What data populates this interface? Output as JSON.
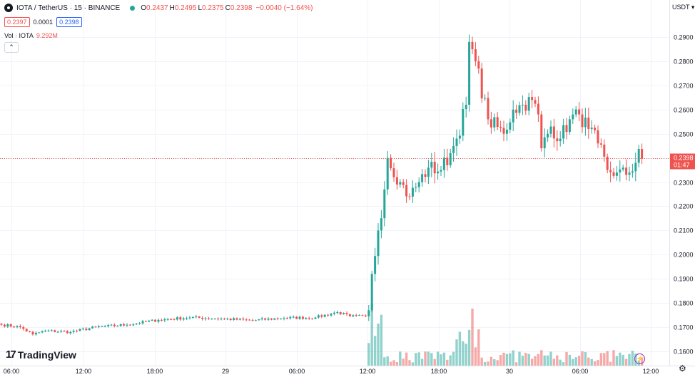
{
  "header": {
    "symbol": "IOTA / TetherUS · 15 · BINANCE",
    "o_label": "O",
    "o_value": "0.2437",
    "h_label": "H",
    "h_value": "0.2495",
    "l_label": "L",
    "l_value": "0.2375",
    "c_label": "C",
    "c_value": "0.2398",
    "change": "−0.0040 (−1.64%)"
  },
  "trade": {
    "sell": "0.2397",
    "spread": "0.0001",
    "buy": "0.2398"
  },
  "volume": {
    "label": "Vol · IOTA",
    "value": "9.292M"
  },
  "collapse_icon": "chevron-up-icon",
  "currency": "USDT",
  "watermark": "TradingView",
  "colors": {
    "up": "#26a69a",
    "down": "#ef5350",
    "grid": "#f0f3fa",
    "text": "#131722",
    "price_line": "#ef5350"
  },
  "chart_data": {
    "type": "candlestick",
    "symbol": "IOTA/USDT",
    "interval": "15",
    "ylim": [
      0.155,
      0.3
    ],
    "y_ticks": [
      0.16,
      0.17,
      0.18,
      0.19,
      0.2,
      0.21,
      0.22,
      0.23,
      0.24,
      0.25,
      0.26,
      0.27,
      0.28,
      0.29
    ],
    "y_tick_labels": [
      "0.1600",
      "0.1700",
      "0.1800",
      "0.1900",
      "0.2000",
      "0.2100",
      "0.2200",
      "0.2300",
      "0.2400",
      "0.2500",
      "0.2600",
      "0.2700",
      "0.2800",
      "0.2900"
    ],
    "x_tick_labels": [
      "06:00",
      "12:00",
      "18:00",
      "29",
      "06:00",
      "12:00",
      "18:00",
      "30",
      "06:00",
      "12:00"
    ],
    "last_price": 0.2398,
    "last_price_label": "0.2398",
    "countdown": "01:47",
    "series": [
      {
        "name": "Price",
        "key_points": [
          {
            "i": 0,
            "p": 0.171
          },
          {
            "i": 6,
            "p": 0.17
          },
          {
            "i": 10,
            "p": 0.167
          },
          {
            "i": 14,
            "p": 0.1685
          },
          {
            "i": 22,
            "p": 0.168
          },
          {
            "i": 30,
            "p": 0.17
          },
          {
            "i": 40,
            "p": 0.171
          },
          {
            "i": 50,
            "p": 0.173
          },
          {
            "i": 60,
            "p": 0.174
          },
          {
            "i": 70,
            "p": 0.1735
          },
          {
            "i": 80,
            "p": 0.1728
          },
          {
            "i": 90,
            "p": 0.1738
          },
          {
            "i": 100,
            "p": 0.174
          },
          {
            "i": 107,
            "p": 0.1762
          },
          {
            "i": 111,
            "p": 0.1745
          },
          {
            "i": 116,
            "p": 0.1745
          },
          {
            "i": 117,
            "p": 0.177
          },
          {
            "i": 118,
            "p": 0.192
          },
          {
            "i": 120,
            "p": 0.21
          },
          {
            "i": 122,
            "p": 0.227
          },
          {
            "i": 123,
            "p": 0.24
          },
          {
            "i": 127,
            "p": 0.23
          },
          {
            "i": 130,
            "p": 0.224
          },
          {
            "i": 133,
            "p": 0.23
          },
          {
            "i": 136,
            "p": 0.236
          },
          {
            "i": 140,
            "p": 0.235
          },
          {
            "i": 143,
            "p": 0.242
          },
          {
            "i": 145,
            "p": 0.248
          },
          {
            "i": 148,
            "p": 0.262
          },
          {
            "i": 149,
            "p": 0.288
          },
          {
            "i": 151,
            "p": 0.28
          },
          {
            "i": 155,
            "p": 0.256
          },
          {
            "i": 160,
            "p": 0.25
          },
          {
            "i": 163,
            "p": 0.26
          },
          {
            "i": 166,
            "p": 0.262
          },
          {
            "i": 169,
            "p": 0.264
          },
          {
            "i": 171,
            "p": 0.258
          },
          {
            "i": 172,
            "p": 0.244
          },
          {
            "i": 175,
            "p": 0.253
          },
          {
            "i": 178,
            "p": 0.248
          },
          {
            "i": 181,
            "p": 0.256
          },
          {
            "i": 184,
            "p": 0.258
          },
          {
            "i": 187,
            "p": 0.252
          },
          {
            "i": 190,
            "p": 0.246
          },
          {
            "i": 193,
            "p": 0.235
          },
          {
            "i": 196,
            "p": 0.234
          },
          {
            "i": 199,
            "p": 0.233
          },
          {
            "i": 202,
            "p": 0.238
          },
          {
            "i": 203,
            "p": 0.2437
          },
          {
            "i": 204,
            "p": 0.2398
          }
        ]
      },
      {
        "name": "Volume",
        "unit": "IOTA"
      }
    ]
  }
}
